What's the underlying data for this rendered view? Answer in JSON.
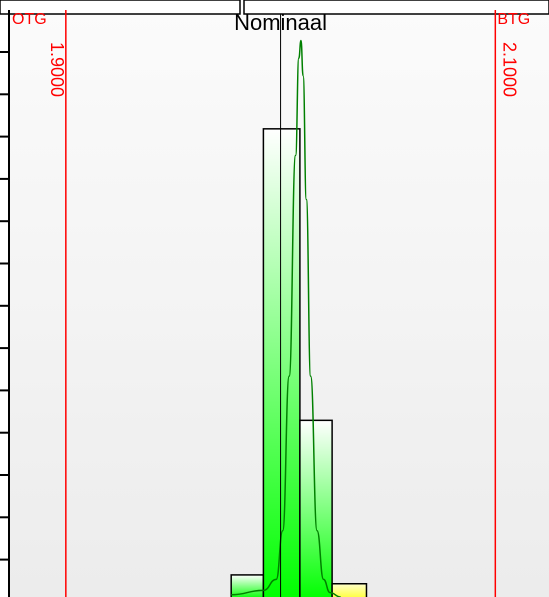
{
  "chart_data": {
    "type": "bar",
    "title": "Nominaal",
    "lower_limit": {
      "label": "OTG",
      "value": 1.9,
      "value_text": "1.9000",
      "color": "#ff0000"
    },
    "upper_limit": {
      "label": "BTG",
      "value": 2.1,
      "value_text": "2.1000",
      "color": "#ff0000"
    },
    "nominal": 2.0,
    "xlim": [
      1.874,
      2.125
    ],
    "bins": [
      {
        "x0": 1.977,
        "x1": 1.992,
        "count": 0.5
      },
      {
        "x0": 1.992,
        "x1": 2.009,
        "count": 10.6
      },
      {
        "x0": 2.009,
        "x1": 2.024,
        "count": 4.0
      },
      {
        "x0": 2.024,
        "x1": 2.04,
        "count": 0.3
      }
    ],
    "density_curve": {
      "x": [
        1.977,
        1.992,
        1.998,
        2.001,
        2.004,
        2.007,
        2.0085,
        2.0095,
        2.0105,
        2.012,
        2.014,
        2.017,
        2.02,
        2.023,
        2.028
      ],
      "y": [
        0.05,
        0.15,
        0.4,
        1.5,
        5.0,
        10.0,
        12.2,
        12.6,
        11.8,
        9.0,
        5.0,
        1.5,
        0.4,
        0.1,
        0.0
      ]
    },
    "ylim": [
      0,
      13.2
    ],
    "colors": {
      "in_tolerance": "#00ff00",
      "edge": "#ffff33",
      "curve": "#008000",
      "background": "#f4f4f4"
    }
  }
}
